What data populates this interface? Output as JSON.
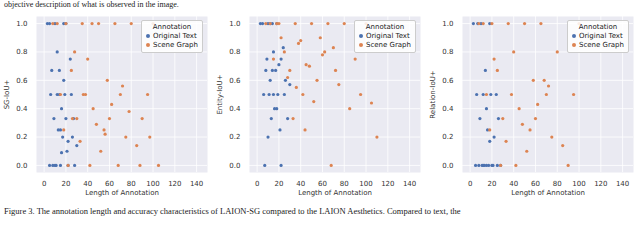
{
  "page_text": {
    "top": "objective description of what is observed in the image.",
    "caption": "Figure 3. The annotation length and accuracy characteristics of LAION-SG compared to the LAION Aesthetics. Compared to text, the"
  },
  "chart_data": [
    {
      "type": "scatter",
      "x_label": "Length of Annotation",
      "y_label": "SG-IoU+",
      "xlim": [
        -7,
        150
      ],
      "xticks": [
        0,
        20,
        40,
        60,
        80,
        100,
        120,
        140
      ],
      "ylim": [
        -0.05,
        1.05
      ],
      "yticks": [
        {
          "value": 0,
          "label": "0.0"
        },
        {
          "value": 0.2,
          "label": "0.2"
        },
        {
          "value": 0.4,
          "label": "0.4"
        },
        {
          "value": 0.6,
          "label": "0.6"
        },
        {
          "value": 0.8,
          "label": "0.8"
        },
        {
          "value": 1,
          "label": "1.0"
        }
      ],
      "grid": true,
      "legend": "upper right",
      "legend_title": "Annotation",
      "series": [
        {
          "name": "Original Text",
          "color": "#4c72b0",
          "marker": "circle",
          "x": [
            3,
            5,
            6,
            8,
            9,
            10,
            11,
            12,
            13,
            14,
            15,
            16,
            17,
            18,
            19,
            20,
            21,
            22,
            24,
            25,
            26,
            28,
            30,
            7,
            12,
            15,
            18,
            22,
            10,
            14,
            5,
            20,
            27,
            16
          ],
          "values": [
            1,
            1,
            0.5,
            0,
            0.33,
            1,
            0,
            0.5,
            0.25,
            0.67,
            0,
            0.4,
            0.2,
            1,
            0.5,
            0.33,
            0.1,
            0,
            0.75,
            0.5,
            0.2,
            0,
            0.14,
            0.67,
            0.8,
            0.25,
            0.6,
            0.17,
            0,
            0.5,
            0,
            1,
            0.33,
            0.09
          ]
        },
        {
          "name": "Scene Graph",
          "color": "#dd8452",
          "marker": "circle",
          "x": [
            8,
            12,
            15,
            20,
            25,
            30,
            35,
            38,
            42,
            45,
            50,
            55,
            58,
            60,
            65,
            70,
            75,
            80,
            85,
            90,
            95,
            100,
            105,
            22,
            28,
            33,
            40,
            48,
            52,
            62,
            68,
            72,
            18,
            36,
            44,
            56,
            78,
            88,
            97,
            26
          ],
          "values": [
            1,
            1,
            0.5,
            1,
            0.67,
            0.33,
            1,
            0.5,
            0,
            0.4,
            1,
            0.25,
            0.6,
            0.33,
            1,
            0.5,
            0.2,
            1,
            0.14,
            0.33,
            0.5,
            1,
            0,
            0,
            0.8,
            0.17,
            0.75,
            0.29,
            0.1,
            0.43,
            0,
            0.56,
            0.25,
            0.5,
            1,
            0.22,
            0.38,
            0,
            0.2,
            0.33
          ]
        }
      ]
    },
    {
      "type": "scatter",
      "x_label": "Length of Annotation",
      "y_label": "Entity-IoU+",
      "xlim": [
        -7,
        150
      ],
      "xticks": [
        0,
        20,
        40,
        60,
        80,
        100,
        120,
        140
      ],
      "ylim": [
        -0.05,
        1.05
      ],
      "yticks": [
        {
          "value": 0,
          "label": "0.0"
        },
        {
          "value": 0.2,
          "label": "0.2"
        },
        {
          "value": 0.4,
          "label": "0.4"
        },
        {
          "value": 0.6,
          "label": "0.6"
        },
        {
          "value": 0.8,
          "label": "0.8"
        },
        {
          "value": 1,
          "label": "1.0"
        }
      ],
      "grid": true,
      "legend": "upper right",
      "legend_title": "Annotation",
      "series": [
        {
          "name": "Original Text",
          "color": "#4c72b0",
          "marker": "circle",
          "x": [
            3,
            5,
            6,
            8,
            9,
            10,
            11,
            12,
            13,
            14,
            15,
            16,
            17,
            18,
            19,
            20,
            21,
            22,
            24,
            25,
            26,
            28,
            30,
            7,
            12,
            15,
            18,
            22,
            10,
            14
          ],
          "values": [
            1,
            1,
            0.5,
            0.67,
            0.75,
            1,
            0.5,
            0.6,
            0.33,
            1,
            0.8,
            0.4,
            0.67,
            1,
            0.5,
            0.71,
            0.25,
            0,
            0.83,
            0.5,
            0.6,
            0.33,
            0.57,
            0,
            1,
            0.5,
            0.4,
            0.75,
            0.2,
            0.67
          ]
        },
        {
          "name": "Scene Graph",
          "color": "#dd8452",
          "marker": "circle",
          "x": [
            8,
            12,
            15,
            20,
            25,
            30,
            35,
            38,
            42,
            45,
            50,
            55,
            58,
            60,
            65,
            70,
            75,
            80,
            85,
            90,
            95,
            100,
            105,
            110,
            22,
            28,
            33,
            40,
            48,
            52,
            62,
            68,
            72,
            18,
            36,
            44
          ],
          "values": [
            1,
            1,
            0.75,
            1,
            0.8,
            0.67,
            1,
            0.86,
            0.5,
            0.71,
            1,
            0.6,
            0.9,
            0.78,
            1,
            0.83,
            0.57,
            1,
            0.4,
            0.75,
            0.5,
            1,
            0.44,
            0.2,
            0.9,
            0.62,
            0.33,
            0.88,
            0.7,
            0.45,
            0.8,
            0,
            0.67,
            1,
            0.55,
            0.25
          ]
        }
      ]
    },
    {
      "type": "scatter",
      "x_label": "Length of Annotation",
      "y_label": "Relation-IoU+",
      "xlim": [
        -7,
        150
      ],
      "xticks": [
        0,
        20,
        40,
        60,
        80,
        100,
        120,
        140
      ],
      "ylim": [
        -0.05,
        1.05
      ],
      "yticks": [
        {
          "value": 0,
          "label": "0.0"
        },
        {
          "value": 0.2,
          "label": "0.2"
        },
        {
          "value": 0.4,
          "label": "0.4"
        },
        {
          "value": 0.6,
          "label": "0.6"
        },
        {
          "value": 0.8,
          "label": "0.8"
        },
        {
          "value": 1,
          "label": "1.0"
        }
      ],
      "grid": true,
      "legend": "upper right",
      "legend_title": "Annotation",
      "series": [
        {
          "name": "Original Text",
          "color": "#4c72b0",
          "marker": "circle",
          "x": [
            3,
            5,
            6,
            8,
            9,
            10,
            11,
            12,
            13,
            14,
            15,
            16,
            17,
            18,
            19,
            20,
            21,
            22,
            24,
            25,
            26,
            28,
            7,
            12,
            15,
            18
          ],
          "values": [
            1,
            0,
            0.5,
            0,
            0.33,
            1,
            0,
            0.5,
            0,
            0.67,
            0,
            0.25,
            0,
            1,
            0.5,
            0,
            0,
            0.2,
            0.5,
            0,
            0.33,
            0,
            1,
            0,
            0.4,
            0.17
          ]
        },
        {
          "name": "Scene Graph",
          "color": "#dd8452",
          "marker": "circle",
          "x": [
            8,
            12,
            15,
            20,
            25,
            30,
            35,
            38,
            42,
            45,
            50,
            55,
            58,
            60,
            65,
            70,
            75,
            80,
            85,
            90,
            95,
            100,
            22,
            28,
            33,
            40,
            48,
            52,
            62,
            68,
            72,
            18
          ],
          "values": [
            1,
            1,
            0.5,
            1,
            0.67,
            0.33,
            1,
            0.5,
            0,
            0.4,
            1,
            0.25,
            0.6,
            0.33,
            1,
            0.5,
            0.2,
            0.8,
            0.14,
            0,
            0.5,
            1,
            0.75,
            0,
            0.17,
            0.8,
            0.29,
            0.1,
            0.43,
            0.6,
            0.56,
            0.25
          ]
        }
      ]
    }
  ]
}
